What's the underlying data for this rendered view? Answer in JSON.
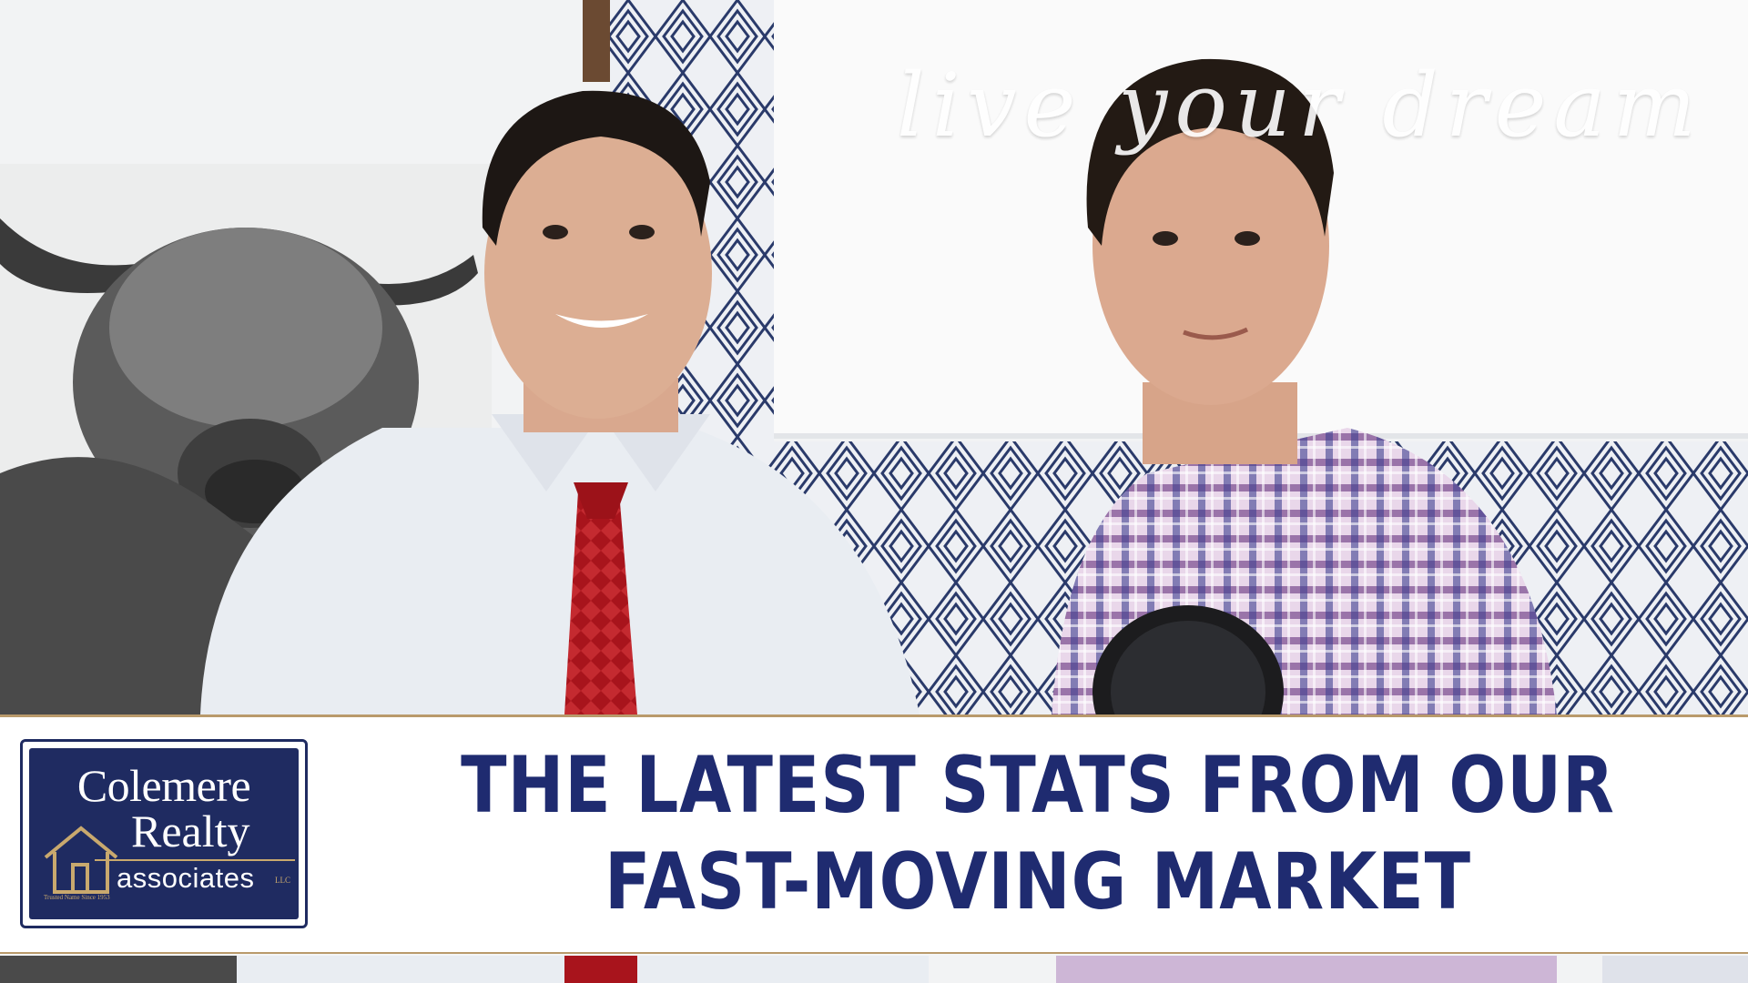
{
  "banner": {
    "headline_line1": "THE LATEST STATS FROM OUR",
    "headline_line2": "FAST-MOVING MARKET",
    "headline_color": "#1f2b70"
  },
  "logo": {
    "line1": "Colemere",
    "line2": "Realty",
    "line3": "associates",
    "llc": "LLC",
    "tagline": "Trusted Name Since 1953",
    "bg_color": "#1f2b61",
    "accent_color": "#c9a96e"
  },
  "background": {
    "wall_script": "live your dream"
  }
}
